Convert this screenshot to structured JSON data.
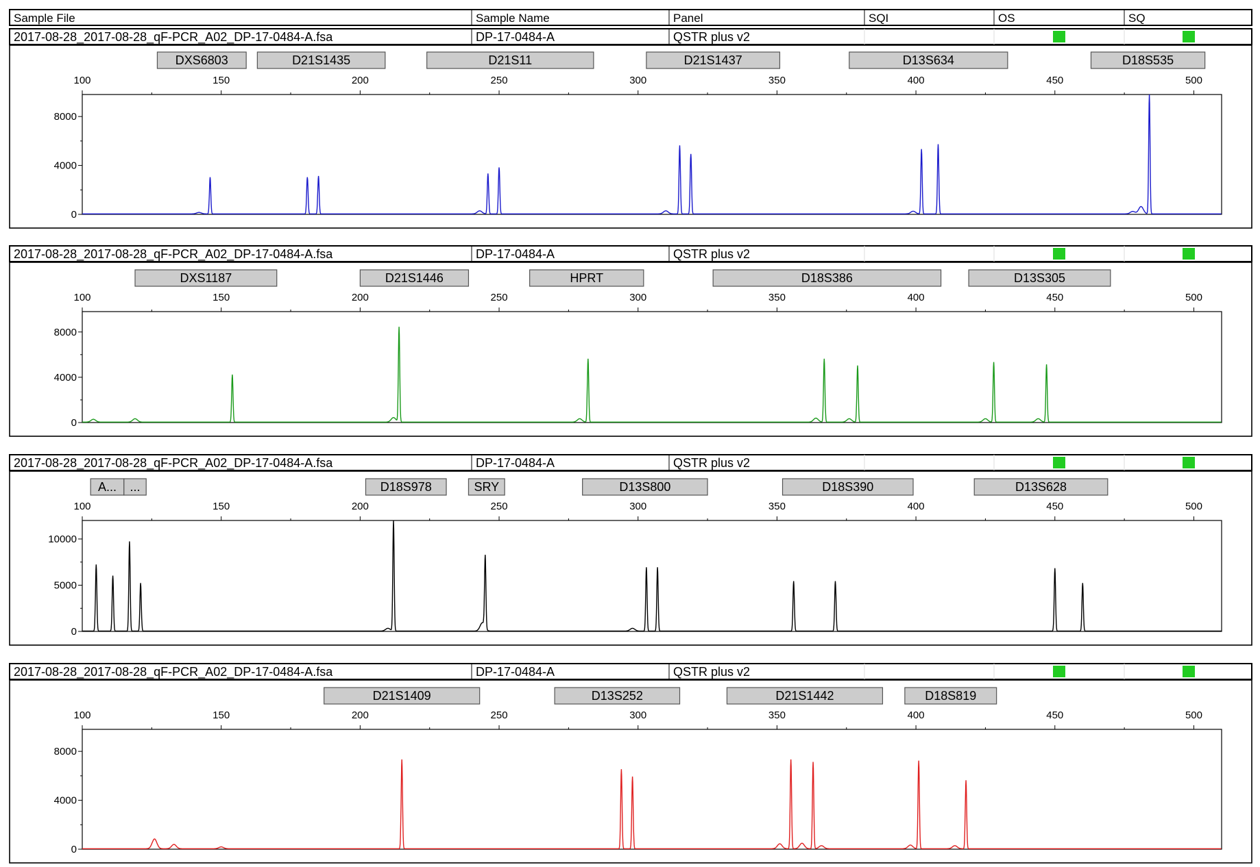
{
  "header": {
    "columns": [
      "Sample File",
      "Sample Name",
      "Panel",
      "SQI",
      "OS",
      "SQ"
    ]
  },
  "colors": {
    "status_ok": "#22cc22",
    "marker_fill": "#cccccc",
    "blue": "#1a1acc",
    "green": "#1a9a1a",
    "black": "#000000",
    "red": "#e02020"
  },
  "chart_data": [
    {
      "type": "line",
      "dye": "blue",
      "info": {
        "sample_file": "2017-08-28_2017-08-28_qF-PCR_A02_DP-17-0484-A.fsa",
        "sample_name": "DP-17-0484-A",
        "panel": "QSTR plus v2",
        "sqi": "",
        "os_status": "pass",
        "sq_status": "pass"
      },
      "markers": [
        {
          "label": "DXS6803",
          "start": 127,
          "end": 159
        },
        {
          "label": "D21S1435",
          "start": 163,
          "end": 209
        },
        {
          "label": "D21S11",
          "start": 224,
          "end": 284
        },
        {
          "label": "D21S1437",
          "start": 303,
          "end": 351
        },
        {
          "label": "D13S634",
          "start": 376,
          "end": 433
        },
        {
          "label": "D18S535",
          "start": 463,
          "end": 504
        }
      ],
      "xlim": [
        100,
        510
      ],
      "x_ticks": [
        100,
        150,
        200,
        250,
        300,
        350,
        400,
        450,
        500
      ],
      "ylim": [
        0,
        9800
      ],
      "y_ticks": [
        0,
        4000,
        8000
      ],
      "peaks": [
        {
          "x": 146,
          "y": 3000
        },
        {
          "x": 181,
          "y": 3000
        },
        {
          "x": 185,
          "y": 3100
        },
        {
          "x": 246,
          "y": 3300
        },
        {
          "x": 250,
          "y": 3800
        },
        {
          "x": 315,
          "y": 5600
        },
        {
          "x": 319,
          "y": 4900
        },
        {
          "x": 402,
          "y": 5300
        },
        {
          "x": 408,
          "y": 5700
        },
        {
          "x": 481,
          "y": 600
        },
        {
          "x": 484,
          "y": 9800
        },
        {
          "x": 142,
          "y": 120
        },
        {
          "x": 243,
          "y": 250
        },
        {
          "x": 310,
          "y": 250
        },
        {
          "x": 399,
          "y": 220
        },
        {
          "x": 478,
          "y": 200
        }
      ]
    },
    {
      "type": "line",
      "dye": "green",
      "info": {
        "sample_file": "2017-08-28_2017-08-28_qF-PCR_A02_DP-17-0484-A.fsa",
        "sample_name": "DP-17-0484-A",
        "panel": "QSTR plus v2",
        "sqi": "",
        "os_status": "pass",
        "sq_status": "pass"
      },
      "markers": [
        {
          "label": "DXS1187",
          "start": 119,
          "end": 170
        },
        {
          "label": "D21S1446",
          "start": 200,
          "end": 239
        },
        {
          "label": "HPRT",
          "start": 261,
          "end": 302
        },
        {
          "label": "D18S386",
          "start": 327,
          "end": 409
        },
        {
          "label": "D13S305",
          "start": 419,
          "end": 470
        }
      ],
      "xlim": [
        100,
        510
      ],
      "x_ticks": [
        100,
        150,
        200,
        250,
        300,
        350,
        400,
        450,
        500
      ],
      "ylim": [
        0,
        9800
      ],
      "y_ticks": [
        0,
        4000,
        8000
      ],
      "peaks": [
        {
          "x": 154,
          "y": 4200
        },
        {
          "x": 214,
          "y": 8400
        },
        {
          "x": 282,
          "y": 5600
        },
        {
          "x": 367,
          "y": 5600
        },
        {
          "x": 379,
          "y": 5000
        },
        {
          "x": 428,
          "y": 5300
        },
        {
          "x": 447,
          "y": 5100
        },
        {
          "x": 104,
          "y": 250
        },
        {
          "x": 119,
          "y": 300
        },
        {
          "x": 212,
          "y": 400
        },
        {
          "x": 279,
          "y": 300
        },
        {
          "x": 364,
          "y": 350
        },
        {
          "x": 376,
          "y": 300
        },
        {
          "x": 425,
          "y": 300
        },
        {
          "x": 444,
          "y": 300
        }
      ]
    },
    {
      "type": "line",
      "dye": "black",
      "info": {
        "sample_file": "2017-08-28_2017-08-28_qF-PCR_A02_DP-17-0484-A.fsa",
        "sample_name": "DP-17-0484-A",
        "panel": "QSTR plus v2",
        "sqi": "",
        "os_status": "pass",
        "sq_status": "pass"
      },
      "markers": [
        {
          "label": "A...",
          "start": 103,
          "end": 115
        },
        {
          "label": "...",
          "start": 115,
          "end": 123
        },
        {
          "label": "D18S978",
          "start": 202,
          "end": 231
        },
        {
          "label": "SRY",
          "start": 239,
          "end": 252
        },
        {
          "label": "D13S800",
          "start": 280,
          "end": 325
        },
        {
          "label": "D18S390",
          "start": 352,
          "end": 399
        },
        {
          "label": "D13S628",
          "start": 421,
          "end": 469
        }
      ],
      "xlim": [
        100,
        510
      ],
      "x_ticks": [
        100,
        150,
        200,
        250,
        300,
        350,
        400,
        450,
        500
      ],
      "ylim": [
        0,
        12000
      ],
      "y_ticks": [
        0,
        5000,
        10000
      ],
      "peaks": [
        {
          "x": 105,
          "y": 7200
        },
        {
          "x": 111,
          "y": 6000
        },
        {
          "x": 117,
          "y": 9700
        },
        {
          "x": 121,
          "y": 5200
        },
        {
          "x": 212,
          "y": 12000
        },
        {
          "x": 245,
          "y": 7800
        },
        {
          "x": 303,
          "y": 6900
        },
        {
          "x": 307,
          "y": 6900
        },
        {
          "x": 356,
          "y": 5400
        },
        {
          "x": 371,
          "y": 5400
        },
        {
          "x": 450,
          "y": 6800
        },
        {
          "x": 460,
          "y": 5200
        },
        {
          "x": 244,
          "y": 900
        },
        {
          "x": 298,
          "y": 300
        },
        {
          "x": 210,
          "y": 300
        }
      ]
    },
    {
      "type": "line",
      "dye": "red",
      "info": {
        "sample_file": "2017-08-28_2017-08-28_qF-PCR_A02_DP-17-0484-A.fsa",
        "sample_name": "DP-17-0484-A",
        "panel": "QSTR plus v2",
        "sqi": "",
        "os_status": "pass",
        "sq_status": "pass"
      },
      "markers": [
        {
          "label": "D21S1409",
          "start": 187,
          "end": 243
        },
        {
          "label": "D13S252",
          "start": 270,
          "end": 315
        },
        {
          "label": "D21S1442",
          "start": 332,
          "end": 388
        },
        {
          "label": "D18S819",
          "start": 396,
          "end": 429
        }
      ],
      "xlim": [
        100,
        510
      ],
      "x_ticks": [
        100,
        150,
        200,
        250,
        300,
        350,
        400,
        450,
        500
      ],
      "ylim": [
        0,
        9800
      ],
      "y_ticks": [
        0,
        4000,
        8000
      ],
      "peaks": [
        {
          "x": 215,
          "y": 7300
        },
        {
          "x": 294,
          "y": 6500
        },
        {
          "x": 298,
          "y": 5900
        },
        {
          "x": 355,
          "y": 7300
        },
        {
          "x": 363,
          "y": 7100
        },
        {
          "x": 401,
          "y": 7200
        },
        {
          "x": 418,
          "y": 5600
        },
        {
          "x": 126,
          "y": 800
        },
        {
          "x": 133,
          "y": 350
        },
        {
          "x": 150,
          "y": 150
        },
        {
          "x": 351,
          "y": 400
        },
        {
          "x": 359,
          "y": 450
        },
        {
          "x": 366,
          "y": 250
        },
        {
          "x": 398,
          "y": 300
        },
        {
          "x": 414,
          "y": 250
        }
      ]
    }
  ]
}
